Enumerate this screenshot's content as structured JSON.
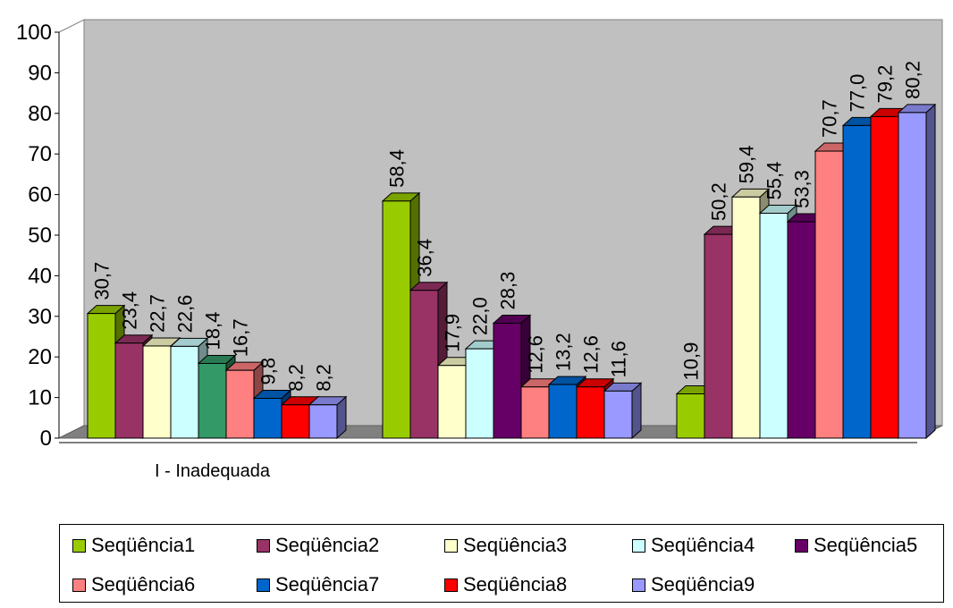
{
  "chart_data": {
    "type": "bar",
    "categories": [
      "I - Inadequada",
      "",
      ""
    ],
    "ylim": [
      0,
      100
    ],
    "yticks": [
      0,
      10,
      20,
      30,
      40,
      50,
      60,
      70,
      80,
      90,
      100
    ],
    "grid": false,
    "legend_position": "bottom",
    "series": [
      {
        "name": "Seqüência1",
        "color": "#99cc00",
        "values": [
          30.7,
          58.4,
          10.9
        ],
        "labels": [
          "30,7",
          "58,4",
          "10,9"
        ]
      },
      {
        "name": "Seqüência2",
        "color": "#993366",
        "values": [
          23.4,
          36.4,
          50.2
        ],
        "labels": [
          "23,4",
          "36,4",
          "50,2"
        ]
      },
      {
        "name": "Seqüência3",
        "color": "#ffffcc",
        "values": [
          22.7,
          17.9,
          59.4
        ],
        "labels": [
          "22,7",
          "17,9",
          "59,4"
        ]
      },
      {
        "name": "Seqüência4",
        "color": "#ccffff",
        "values": [
          22.6,
          22.0,
          55.4
        ],
        "labels": [
          "22,6",
          "22,0",
          "55,4"
        ]
      },
      {
        "name": "Seqüência5",
        "color": "#660066",
        "values": [
          18.4,
          28.3,
          53.3
        ],
        "labels": [
          "18,4",
          "28,3",
          "53,3"
        ]
      },
      {
        "name": "Seqüência6",
        "color": "#ff8080",
        "values": [
          16.7,
          12.6,
          70.7
        ],
        "labels": [
          "16,7",
          "12,6",
          "70,7"
        ]
      },
      {
        "name": "Seqüência7",
        "color": "#0066cc",
        "values": [
          9.8,
          13.2,
          77.0
        ],
        "labels": [
          "9,8",
          "13,2",
          "77,0"
        ]
      },
      {
        "name": "Seqüência8",
        "color": "#ff0000",
        "values": [
          8.2,
          12.6,
          79.2
        ],
        "labels": [
          "8,2",
          "12,6",
          "79,2"
        ]
      },
      {
        "name": "Seqüência9",
        "color": "#9999ff",
        "values": [
          8.2,
          11.6,
          80.2
        ],
        "labels": [
          "8,2",
          "11,6",
          "80,2"
        ]
      }
    ],
    "first_group_bar5_color": "#339966"
  }
}
